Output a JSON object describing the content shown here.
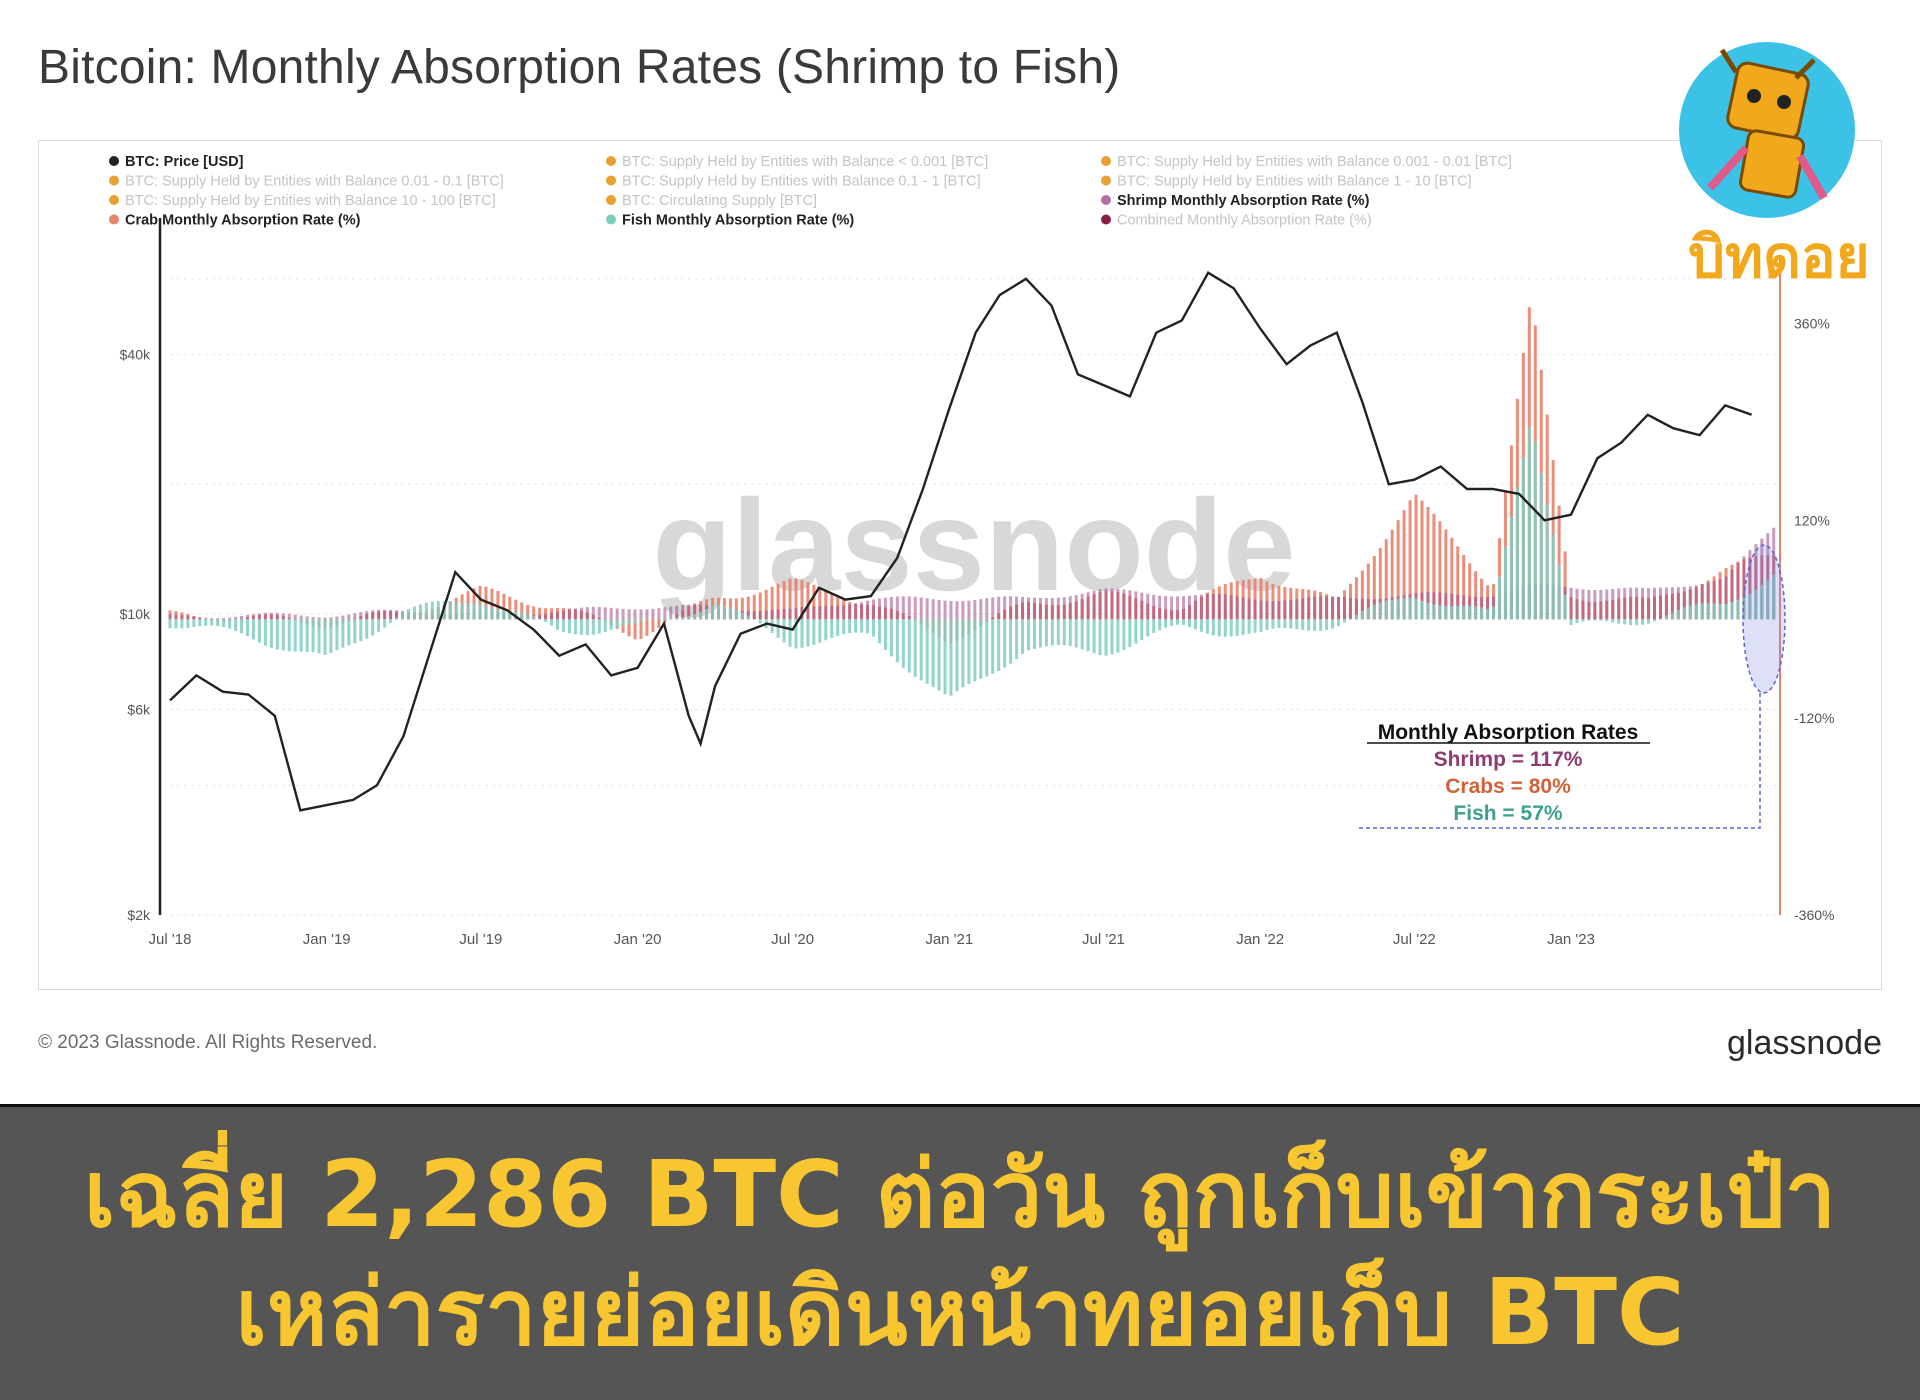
{
  "title": "Bitcoin: Monthly Absorption Rates (Shrimp to Fish)",
  "footer": {
    "copyright": "© 2023 Glassnode. All Rights Reserved.",
    "brand": "glassnode"
  },
  "watermark": "glassnode",
  "logo": {
    "text": "บิทดอย",
    "icon": "robot-mascot-icon"
  },
  "banner": {
    "line1": "เฉลี่ย 2,286 BTC ต่อวัน ถูกเก็บเข้ากระเป๋า",
    "line2": "เหล่ารายย่อยเดินหน้าทยอยเก็บ BTC"
  },
  "annotation": {
    "heading": "Monthly Absorption Rates",
    "shrimp": "Shrimp = 117%",
    "crabs": "Crabs = 80%",
    "fish": "Fish = 57%"
  },
  "colors": {
    "price": "#222222",
    "crab": "#e8826a",
    "fish": "#7fcdbf",
    "shrimp": "#9e4a86",
    "shrimp_text": "#8e3b6e",
    "crab_text": "#d0623a",
    "fish_text": "#3ca08d",
    "legend_orange": "#e8a030",
    "combined": "#8a1f45",
    "banner_text": "#f7c631",
    "logo_orange": "#f2a81c",
    "logo_blue": "#35c3e8"
  },
  "chart_data": {
    "type": "line",
    "legend": [
      {
        "label": "BTC: Price [USD]",
        "color": "#222222",
        "active": true
      },
      {
        "label": "BTC: Supply Held by Entities with Balance < 0.001 [BTC]",
        "color": "#e8a030",
        "active": false
      },
      {
        "label": "BTC: Supply Held by Entities with Balance 0.001 - 0.01 [BTC]",
        "color": "#e8a030",
        "active": false
      },
      {
        "label": "BTC: Supply Held by Entities with Balance 0.01 - 0.1 [BTC]",
        "color": "#e8a030",
        "active": false
      },
      {
        "label": "BTC: Supply Held by Entities with Balance 0.1 - 1 [BTC]",
        "color": "#e8a030",
        "active": false
      },
      {
        "label": "BTC: Supply Held by Entities with Balance 1 - 10 [BTC]",
        "color": "#e8a030",
        "active": false
      },
      {
        "label": "BTC: Supply Held by Entities with Balance 10 - 100 [BTC]",
        "color": "#e8a030",
        "active": false
      },
      {
        "label": "BTC: Circulating Supply [BTC]",
        "color": "#e8a030",
        "active": false
      },
      {
        "label": "Shrimp Monthly Absorption Rate (%)",
        "color": "#b070a8",
        "active": true
      },
      {
        "label": "Crab Monthly Absorption Rate (%)",
        "color": "#e8826a",
        "active": true
      },
      {
        "label": "Fish Monthly Absorption Rate (%)",
        "color": "#7fcdbf",
        "active": true
      },
      {
        "label": "Combined Monthly Absorption Rate (%)",
        "color": "#8a1f45",
        "active": false
      }
    ],
    "x_ticks": [
      "Jul '18",
      "Jan '19",
      "Jul '19",
      "Jan '20",
      "Jul '20",
      "Jan '21",
      "Jul '21",
      "Jan '22",
      "Jul '22",
      "Jan '23"
    ],
    "y_left": {
      "scale": "log",
      "ticks": [
        "$2k",
        "$6k",
        "$10k",
        "$40k"
      ],
      "tick_values": [
        2000,
        6000,
        10000,
        40000
      ],
      "range": [
        2000,
        80000
      ]
    },
    "y_right": {
      "ticks": [
        "360%",
        "120%",
        "-120%",
        "-360%"
      ],
      "tick_values": [
        360,
        120,
        -120,
        -360
      ],
      "range": [
        -360,
        480
      ]
    },
    "series": [
      {
        "name": "BTC: Price [USD]",
        "axis": "left",
        "x": [
          "2018-07-01",
          "2018-08-01",
          "2018-09-01",
          "2018-10-01",
          "2018-11-01",
          "2018-12-01",
          "2019-01-01",
          "2019-02-01",
          "2019-03-01",
          "2019-04-01",
          "2019-05-01",
          "2019-06-01",
          "2019-07-01",
          "2019-08-01",
          "2019-09-01",
          "2019-10-01",
          "2019-11-01",
          "2019-12-01",
          "2020-01-01",
          "2020-02-01",
          "2020-03-01",
          "2020-03-15",
          "2020-04-01",
          "2020-05-01",
          "2020-06-01",
          "2020-07-01",
          "2020-08-01",
          "2020-09-01",
          "2020-10-01",
          "2020-11-01",
          "2020-12-01",
          "2021-01-01",
          "2021-02-01",
          "2021-03-01",
          "2021-04-01",
          "2021-05-01",
          "2021-06-01",
          "2021-07-01",
          "2021-08-01",
          "2021-09-01",
          "2021-10-01",
          "2021-11-01",
          "2021-12-01",
          "2022-01-01",
          "2022-02-01",
          "2022-03-01",
          "2022-04-01",
          "2022-05-01",
          "2022-06-01",
          "2022-07-01",
          "2022-08-01",
          "2022-09-01",
          "2022-10-01",
          "2022-11-01",
          "2022-12-01",
          "2023-01-01",
          "2023-02-01",
          "2023-03-01",
          "2023-04-01",
          "2023-05-01",
          "2023-06-01",
          "2023-07-01",
          "2023-08-01"
        ],
        "values": [
          6300,
          7200,
          6600,
          6500,
          5800,
          3500,
          3600,
          3700,
          4000,
          5200,
          8000,
          12500,
          10800,
          10200,
          9200,
          8000,
          8500,
          7200,
          7500,
          9500,
          5800,
          5000,
          6800,
          9000,
          9500,
          9200,
          11500,
          10800,
          11000,
          13500,
          19500,
          30000,
          45000,
          55000,
          60000,
          52000,
          36000,
          34000,
          32000,
          45000,
          48000,
          62000,
          57000,
          46000,
          38000,
          42000,
          45000,
          31000,
          20000,
          20500,
          22000,
          19500,
          19500,
          19000,
          16500,
          17000,
          23000,
          25000,
          29000,
          27000,
          26000,
          30500,
          29000
        ]
      },
      {
        "name": "Crab Monthly Absorption Rate (%)",
        "axis": "right",
        "x": [
          "2018-07-01",
          "2018-10-01",
          "2019-01-01",
          "2019-04-01",
          "2019-07-01",
          "2019-10-01",
          "2020-01-01",
          "2020-04-01",
          "2020-07-01",
          "2020-10-01",
          "2021-01-01",
          "2021-04-01",
          "2021-07-01",
          "2021-10-01",
          "2022-01-01",
          "2022-04-01",
          "2022-07-01",
          "2022-10-01",
          "2022-11-15",
          "2023-01-01",
          "2023-04-01",
          "2023-07-01",
          "2023-09-01"
        ],
        "values": [
          5,
          2,
          -5,
          8,
          35,
          15,
          -20,
          25,
          45,
          20,
          -25,
          18,
          30,
          15,
          55,
          20,
          150,
          40,
          390,
          30,
          20,
          60,
          80
        ]
      },
      {
        "name": "Fish Monthly Absorption Rate (%)",
        "axis": "right",
        "x": [
          "2018-07-01",
          "2018-10-01",
          "2019-01-01",
          "2019-04-01",
          "2019-07-01",
          "2019-10-01",
          "2020-01-01",
          "2020-04-01",
          "2020-07-01",
          "2020-10-01",
          "2021-01-01",
          "2021-04-01",
          "2021-07-01",
          "2021-10-01",
          "2022-01-01",
          "2022-04-01",
          "2022-07-01",
          "2022-10-01",
          "2022-11-15",
          "2023-01-01",
          "2023-04-01",
          "2023-07-01",
          "2023-09-01"
        ],
        "values": [
          -5,
          -20,
          -50,
          10,
          25,
          -15,
          -10,
          20,
          -30,
          -20,
          -100,
          -35,
          -40,
          -10,
          -20,
          -5,
          30,
          5,
          250,
          -10,
          0,
          20,
          57
        ]
      },
      {
        "name": "Shrimp Monthly Absorption Rate (%)",
        "axis": "right",
        "x": [
          "2018-07-01",
          "2018-10-01",
          "2019-01-01",
          "2019-04-01",
          "2019-07-01",
          "2019-10-01",
          "2020-01-01",
          "2020-04-01",
          "2020-07-01",
          "2020-10-01",
          "2021-01-01",
          "2021-04-01",
          "2021-07-01",
          "2021-10-01",
          "2022-01-01",
          "2022-04-01",
          "2022-07-01",
          "2022-10-01",
          "2022-11-15",
          "2023-01-01",
          "2023-04-01",
          "2023-07-01",
          "2023-09-01"
        ],
        "values": [
          3,
          5,
          5,
          10,
          5,
          10,
          15,
          15,
          10,
          25,
          25,
          25,
          35,
          30,
          25,
          25,
          30,
          30,
          40,
          40,
          35,
          50,
          117
        ]
      }
    ]
  }
}
